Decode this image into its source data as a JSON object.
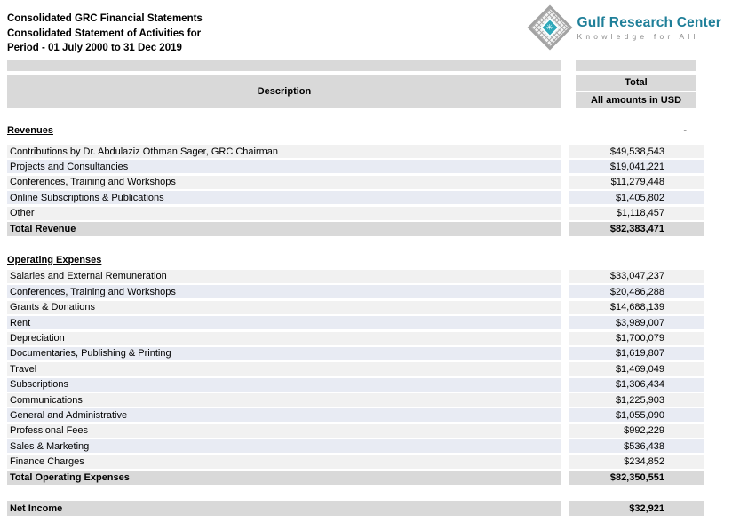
{
  "document": {
    "title_line1": "Consolidated GRC Financial Statements",
    "title_line2": "Consolidated Statement of Activities for",
    "title_line3": "Period - 01 July 2000 to 31 Dec 2019"
  },
  "logo": {
    "name": "Gulf Research Center",
    "tagline": "Knowledge for All"
  },
  "colors": {
    "brand_teal": "#1f7f99",
    "emblem_teal": "#2ea8ba",
    "tagline_gray": "#8e8e8e",
    "header_gray": "#d9d9d9",
    "stripe_gray": "#f1f1f1",
    "stripe_blue": "#e8ebf3"
  },
  "table": {
    "description_header": "Description",
    "total_header": "Total",
    "total_subheader": "All amounts in USD",
    "revenues": {
      "heading": "Revenues",
      "zero_value": "-",
      "rows": [
        {
          "label": "Contributions by Dr. Abdulaziz Othman Sager, GRC Chairman",
          "value": "$49,538,543"
        },
        {
          "label": "Projects and Consultancies",
          "value": "$19,041,221"
        },
        {
          "label": "Conferences, Training and Workshops",
          "value": "$11,279,448"
        },
        {
          "label": "Online Subscriptions & Publications",
          "value": "$1,405,802"
        },
        {
          "label": "Other",
          "value": "$1,118,457"
        }
      ],
      "total": {
        "label": "Total Revenue",
        "value": "$82,383,471"
      }
    },
    "expenses": {
      "heading": "Operating Expenses",
      "rows": [
        {
          "label": "Salaries and External Remuneration",
          "value": "$33,047,237"
        },
        {
          "label": "Conferences, Training and Workshops",
          "value": "$20,486,288"
        },
        {
          "label": "Grants & Donations",
          "value": "$14,688,139"
        },
        {
          "label": "Rent",
          "value": "$3,989,007"
        },
        {
          "label": "Depreciation",
          "value": "$1,700,079"
        },
        {
          "label": "Documentaries, Publishing & Printing",
          "value": "$1,619,807"
        },
        {
          "label": "Travel",
          "value": "$1,469,049"
        },
        {
          "label": "Subscriptions",
          "value": "$1,306,434"
        },
        {
          "label": "Communications",
          "value": "$1,225,903"
        },
        {
          "label": "General and Administrative",
          "value": "$1,055,090"
        },
        {
          "label": "Professional Fees",
          "value": "$992,229"
        },
        {
          "label": "Sales & Marketing",
          "value": "$536,438"
        },
        {
          "label": "Finance Charges",
          "value": "$234,852"
        }
      ],
      "total": {
        "label": "Total Operating Expenses",
        "value": "$82,350,551"
      }
    },
    "net_income": {
      "label": "Net Income",
      "value": "$32,921"
    }
  }
}
